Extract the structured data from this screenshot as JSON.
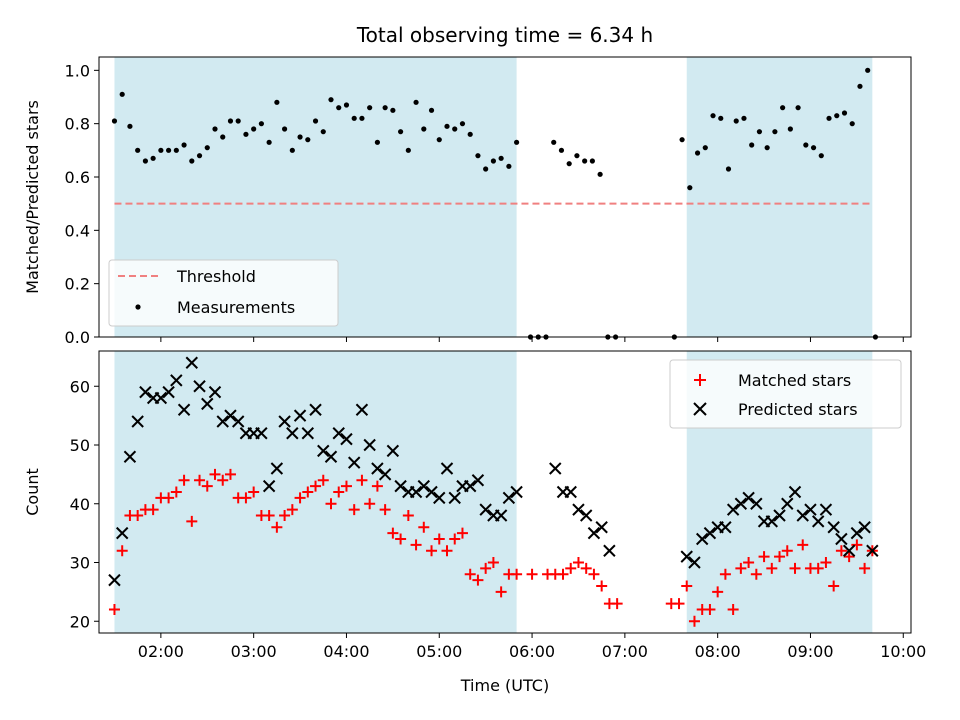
{
  "chart_data": {
    "title": "Total observing time = 6.34 h",
    "xlabel": "Time (UTC)",
    "x_ticks": [
      "02:00",
      "03:00",
      "04:00",
      "05:00",
      "06:00",
      "07:00",
      "08:00",
      "09:00",
      "10:00"
    ],
    "xlim": [
      "01:20",
      "10:05"
    ],
    "shaded_intervals": [
      [
        "01:30",
        "05:50"
      ],
      [
        "07:40",
        "09:40"
      ]
    ],
    "colors": {
      "shade": "#add8e6",
      "threshold": "#f08080",
      "measurement": "#000000",
      "matched": "#ff0000",
      "predicted": "#000000"
    },
    "panels": [
      {
        "type": "scatter",
        "ylabel": "Matched/Predicted stars",
        "ylim": [
          0,
          1.05
        ],
        "y_ticks": [
          "0.0",
          "0.2",
          "0.4",
          "0.6",
          "0.8",
          "1.0"
        ],
        "threshold": {
          "name": "Threshold",
          "value": 0.5
        },
        "legend_position": "lower-left",
        "series": [
          {
            "name": "Measurements",
            "x": [
              "01:30",
              "01:35",
              "01:40",
              "01:45",
              "01:50",
              "01:55",
              "02:00",
              "02:05",
              "02:10",
              "02:15",
              "02:20",
              "02:25",
              "02:30",
              "02:35",
              "02:40",
              "02:45",
              "02:50",
              "02:55",
              "03:00",
              "03:05",
              "03:10",
              "03:15",
              "03:20",
              "03:25",
              "03:30",
              "03:35",
              "03:40",
              "03:45",
              "03:50",
              "03:55",
              "04:00",
              "04:05",
              "04:10",
              "04:15",
              "04:20",
              "04:25",
              "04:30",
              "04:35",
              "04:40",
              "04:45",
              "04:50",
              "04:55",
              "05:00",
              "05:05",
              "05:10",
              "05:15",
              "05:20",
              "05:25",
              "05:30",
              "05:35",
              "05:40",
              "05:45",
              "05:50",
              "05:59",
              "06:04",
              "06:09",
              "06:14",
              "06:19",
              "06:24",
              "06:29",
              "06:34",
              "06:39",
              "06:44",
              "06:49",
              "06:54",
              "07:32",
              "07:37",
              "07:42",
              "07:47",
              "07:52",
              "07:57",
              "08:02",
              "08:07",
              "08:12",
              "08:17",
              "08:22",
              "08:27",
              "08:32",
              "08:37",
              "08:42",
              "08:47",
              "08:52",
              "08:57",
              "09:02",
              "09:07",
              "09:12",
              "09:17",
              "09:22",
              "09:27",
              "09:32",
              "09:37",
              "09:42"
            ],
            "y": [
              0.81,
              0.91,
              0.79,
              0.7,
              0.66,
              0.67,
              0.7,
              0.7,
              0.7,
              0.72,
              0.66,
              0.68,
              0.71,
              0.78,
              0.75,
              0.81,
              0.81,
              0.76,
              0.78,
              0.8,
              0.73,
              0.88,
              0.78,
              0.7,
              0.75,
              0.74,
              0.81,
              0.77,
              0.89,
              0.86,
              0.87,
              0.82,
              0.82,
              0.86,
              0.73,
              0.86,
              0.85,
              0.77,
              0.7,
              0.88,
              0.78,
              0.85,
              0.74,
              0.79,
              0.78,
              0.8,
              0.76,
              0.68,
              0.63,
              0.66,
              0.67,
              0.64,
              0.73,
              0.0,
              0.0,
              0.0,
              0.73,
              0.7,
              0.65,
              0.68,
              0.66,
              0.66,
              0.61,
              0.0,
              0.0,
              0.0,
              0.74,
              0.56,
              0.69,
              0.71,
              0.83,
              0.82,
              0.63,
              0.81,
              0.82,
              0.72,
              0.77,
              0.71,
              0.77,
              0.86,
              0.78,
              0.86,
              0.72,
              0.71,
              0.68,
              0.82,
              0.83,
              0.84,
              0.8,
              0.94,
              1.0,
              0.0
            ]
          }
        ]
      },
      {
        "type": "scatter",
        "ylabel": "Count",
        "ylim": [
          18,
          66
        ],
        "y_ticks": [
          "20",
          "30",
          "40",
          "50",
          "60"
        ],
        "legend_position": "upper-right",
        "series": [
          {
            "name": "Matched stars",
            "marker": "+",
            "x": [
              "01:30",
              "01:35",
              "01:40",
              "01:45",
              "01:50",
              "01:55",
              "02:00",
              "02:05",
              "02:10",
              "02:15",
              "02:20",
              "02:25",
              "02:30",
              "02:35",
              "02:40",
              "02:45",
              "02:50",
              "02:55",
              "03:00",
              "03:05",
              "03:10",
              "03:15",
              "03:20",
              "03:25",
              "03:30",
              "03:35",
              "03:40",
              "03:45",
              "03:50",
              "03:55",
              "04:00",
              "04:05",
              "04:10",
              "04:15",
              "04:20",
              "04:25",
              "04:30",
              "04:35",
              "04:40",
              "04:45",
              "04:50",
              "04:55",
              "05:00",
              "05:05",
              "05:10",
              "05:15",
              "05:20",
              "05:25",
              "05:30",
              "05:35",
              "05:40",
              "05:45",
              "05:50",
              "06:00",
              "06:10",
              "06:15",
              "06:20",
              "06:25",
              "06:30",
              "06:35",
              "06:40",
              "06:45",
              "06:50",
              "06:55",
              "07:30",
              "07:35",
              "07:40",
              "07:45",
              "07:50",
              "07:55",
              "08:00",
              "08:05",
              "08:10",
              "08:15",
              "08:20",
              "08:25",
              "08:30",
              "08:35",
              "08:40",
              "08:45",
              "08:50",
              "08:55",
              "09:00",
              "09:05",
              "09:10",
              "09:15",
              "09:20",
              "09:25",
              "09:30",
              "09:35",
              "09:40"
            ],
            "y": [
              22,
              32,
              38,
              38,
              39,
              39,
              41,
              41,
              42,
              44,
              37,
              44,
              43,
              45,
              44,
              45,
              41,
              41,
              42,
              38,
              38,
              36,
              38,
              39,
              41,
              42,
              43,
              44,
              40,
              42,
              43,
              39,
              44,
              40,
              43,
              39,
              35,
              34,
              38,
              33,
              36,
              32,
              34,
              32,
              34,
              35,
              28,
              27,
              29,
              30,
              25,
              28,
              28,
              28,
              28,
              28,
              28,
              29,
              30,
              29,
              28,
              26,
              23,
              23,
              23,
              23,
              26,
              20,
              22,
              22,
              25,
              28,
              22,
              29,
              30,
              28,
              31,
              29,
              31,
              32,
              29,
              33,
              29,
              29,
              30,
              26,
              32,
              31,
              33,
              29,
              32
            ]
          },
          {
            "name": "Predicted stars",
            "marker": "x",
            "x": [
              "01:30",
              "01:35",
              "01:40",
              "01:45",
              "01:50",
              "01:55",
              "02:00",
              "02:05",
              "02:10",
              "02:15",
              "02:20",
              "02:25",
              "02:30",
              "02:35",
              "02:40",
              "02:45",
              "02:50",
              "02:55",
              "03:00",
              "03:05",
              "03:10",
              "03:15",
              "03:20",
              "03:25",
              "03:30",
              "03:35",
              "03:40",
              "03:45",
              "03:50",
              "03:55",
              "04:00",
              "04:05",
              "04:10",
              "04:15",
              "04:20",
              "04:25",
              "04:30",
              "04:35",
              "04:40",
              "04:45",
              "04:50",
              "04:55",
              "05:00",
              "05:05",
              "05:10",
              "05:15",
              "05:20",
              "05:25",
              "05:30",
              "05:35",
              "05:40",
              "05:45",
              "05:50",
              "06:15",
              "06:20",
              "06:25",
              "06:30",
              "06:35",
              "06:40",
              "06:45",
              "06:50",
              "07:40",
              "07:45",
              "07:50",
              "07:55",
              "08:00",
              "08:05",
              "08:10",
              "08:15",
              "08:20",
              "08:25",
              "08:30",
              "08:35",
              "08:40",
              "08:45",
              "08:50",
              "08:55",
              "09:00",
              "09:05",
              "09:10",
              "09:15",
              "09:20",
              "09:25",
              "09:30",
              "09:35",
              "09:40"
            ],
            "y": [
              27,
              35,
              48,
              54,
              59,
              58,
              58,
              59,
              61,
              56,
              64,
              60,
              57,
              59,
              54,
              55,
              54,
              52,
              52,
              52,
              43,
              46,
              54,
              52,
              55,
              52,
              56,
              49,
              48,
              52,
              51,
              47,
              56,
              50,
              46,
              45,
              49,
              43,
              42,
              42,
              43,
              42,
              41,
              46,
              41,
              43,
              43,
              44,
              39,
              38,
              38,
              41,
              42,
              46,
              42,
              42,
              39,
              38,
              35,
              36,
              32,
              31,
              30,
              34,
              35,
              36,
              36,
              39,
              40,
              41,
              40,
              37,
              37,
              38,
              40,
              42,
              38,
              39,
              37,
              39,
              36,
              34,
              32,
              35,
              36,
              32
            ]
          }
        ]
      }
    ]
  }
}
